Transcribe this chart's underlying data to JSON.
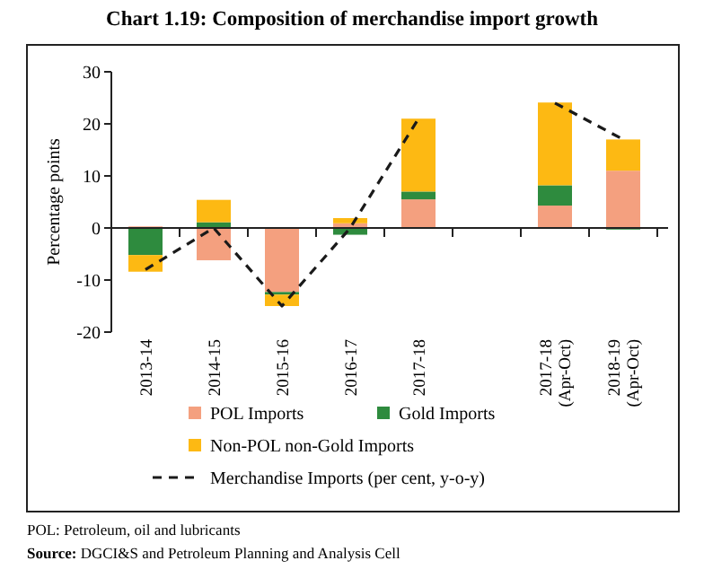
{
  "chart_data": {
    "type": "bar",
    "title": "Chart 1.19: Composition of merchandise import growth",
    "ylabel": "Percentage points",
    "categories": [
      "2013-14",
      "2014-15",
      "2015-16",
      "2016-17",
      "2017-18",
      null,
      "2017-18 (Apr-Oct)",
      "2018-19 (Apr-Oct)"
    ],
    "stacked": true,
    "ylim": [
      -20,
      30
    ],
    "yticks": [
      -20,
      -10,
      0,
      10,
      20,
      30
    ],
    "legend": "bottom",
    "series": [
      {
        "name": "POL Imports",
        "color": "#f4a07f",
        "values": [
          0.3,
          -6.2,
          -12.3,
          0.9,
          5.5,
          null,
          4.3,
          11
        ]
      },
      {
        "name": "Gold Imports",
        "color": "#2e8b3e",
        "values": [
          -5.2,
          1.1,
          -0.5,
          -1.3,
          1.5,
          null,
          3.9,
          -0.3
        ]
      },
      {
        "name": "Non-POL non-Gold Imports",
        "color": "#fdb913",
        "values": [
          -3.2,
          4.3,
          -2.2,
          1.0,
          14,
          null,
          15.9,
          6
        ]
      },
      {
        "name": "Merchandise Imports (per cent, y-o-y)",
        "type": "line",
        "color": "#1a1a1a",
        "line_style": "dashed",
        "values": [
          -8,
          0,
          -15,
          0,
          21,
          null,
          24,
          17
        ]
      }
    ],
    "annotations": [
      "POL: Petroleum, oil and lubricants",
      "Source: DGCI&S and Petroleum Planning and Analysis Cell"
    ]
  }
}
